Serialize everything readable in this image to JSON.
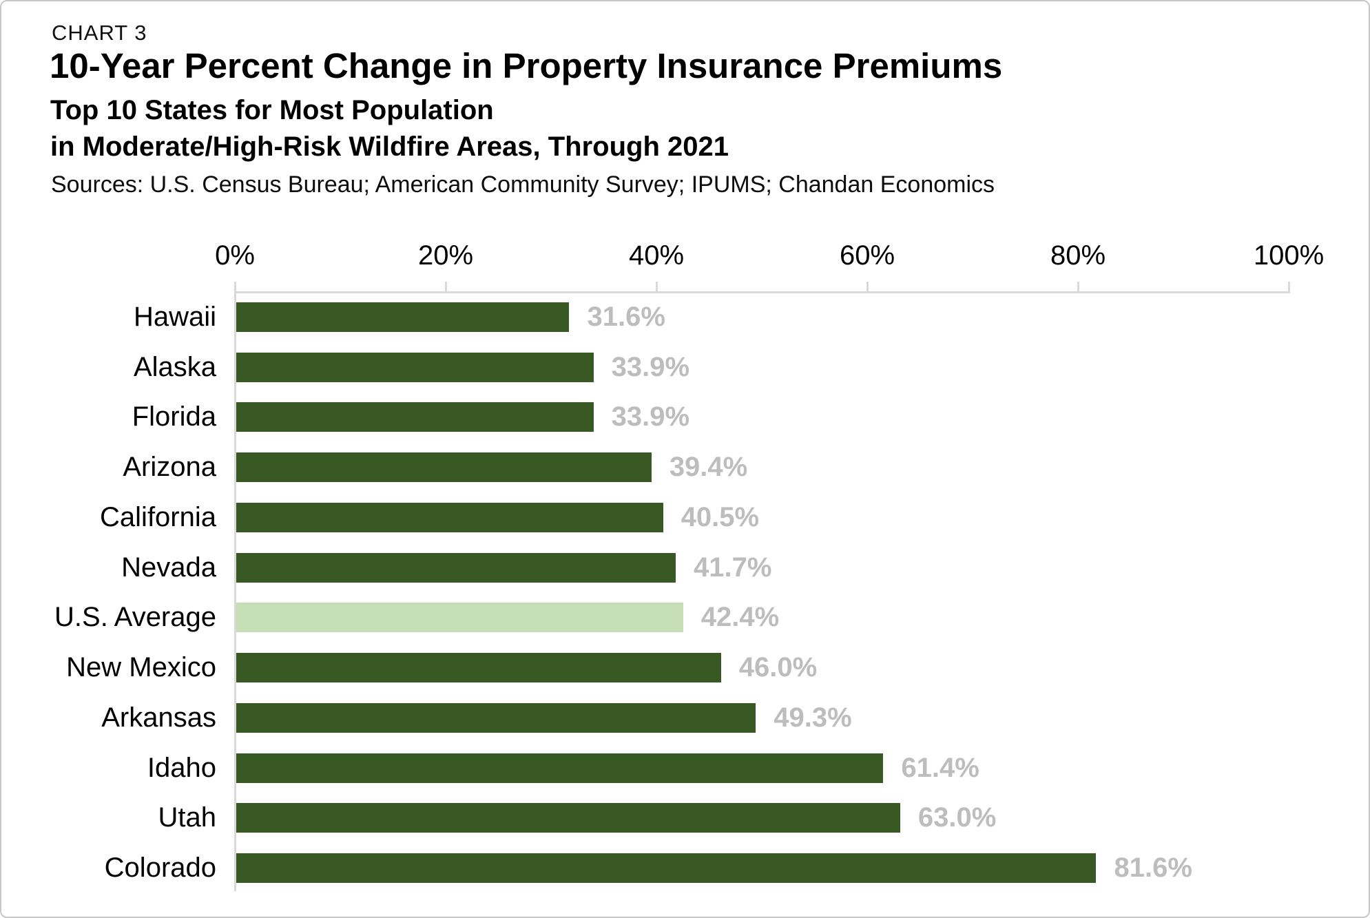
{
  "header": {
    "kicker": "CHART 3",
    "title": "10-Year Percent Change in Property Insurance Premiums",
    "subtitle_line1": "Top 10 States for Most Population",
    "subtitle_line2": "in Moderate/High-Risk Wildfire Areas, Through 2021",
    "sources": "Sources: U.S. Census Bureau; American Community Survey; IPUMS; Chandan Economics"
  },
  "chart_data": {
    "type": "bar",
    "orientation": "horizontal",
    "title": "10-Year Percent Change in Property Insurance Premiums",
    "subtitle": "Top 10 States for Most Population in Moderate/High-Risk Wildfire Areas, Through 2021",
    "categories": [
      "Hawaii",
      "Alaska",
      "Florida",
      "Arizona",
      "California",
      "Nevada",
      "U.S. Average",
      "New Mexico",
      "Arkansas",
      "Idaho",
      "Utah",
      "Colorado"
    ],
    "values": [
      31.6,
      33.9,
      33.9,
      39.4,
      40.5,
      41.7,
      42.4,
      46.0,
      49.3,
      61.4,
      63.0,
      81.6
    ],
    "value_labels": [
      "31.6%",
      "33.9%",
      "33.9%",
      "39.4%",
      "40.5%",
      "41.7%",
      "42.4%",
      "46.0%",
      "49.3%",
      "61.4%",
      "63.0%",
      "81.6%"
    ],
    "highlight_category": "U.S. Average",
    "xlim": [
      0,
      100
    ],
    "x_ticks": [
      "0%",
      "20%",
      "40%",
      "60%",
      "80%",
      "100%"
    ],
    "x_tick_values": [
      0,
      20,
      40,
      60,
      80,
      100
    ],
    "xlabel": "",
    "ylabel": "",
    "grid": false,
    "legend": false,
    "axis_position": "top",
    "colors": {
      "bar": "#385824",
      "highlight_bar": "#c5deb4",
      "value_label": "#bdbdbd",
      "axis_line": "#d9d9d9",
      "text": "#000000"
    }
  }
}
